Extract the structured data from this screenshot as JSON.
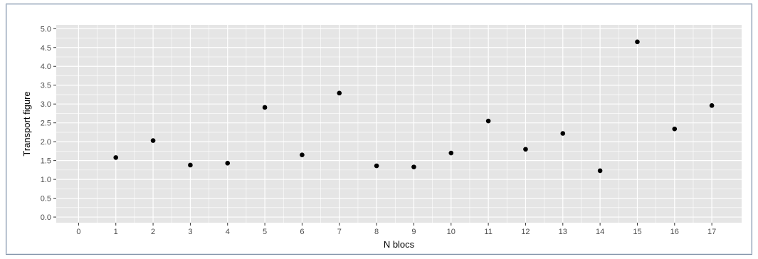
{
  "chart_data": {
    "type": "scatter",
    "xlabel": "N blocs",
    "ylabel": "Transport figure",
    "xlim": [
      -0.6,
      17.8
    ],
    "ylim": [
      -0.15,
      5.1
    ],
    "grid": true,
    "x_ticks": [
      0,
      1,
      2,
      3,
      4,
      5,
      6,
      7,
      8,
      9,
      10,
      11,
      12,
      13,
      14,
      15,
      16,
      17
    ],
    "y_ticks": [
      "0.0",
      "0.5",
      "1.0",
      "1.5",
      "2.0",
      "2.5",
      "3.0",
      "3.5",
      "4.0",
      "4.5",
      "5.0"
    ],
    "x": [
      1,
      2,
      3,
      4,
      5,
      6,
      7,
      8,
      9,
      10,
      11,
      12,
      13,
      14,
      15,
      16,
      17
    ],
    "y": [
      1.58,
      2.03,
      1.38,
      1.43,
      2.91,
      1.65,
      3.29,
      1.36,
      1.33,
      1.7,
      2.55,
      1.8,
      2.22,
      1.23,
      4.65,
      2.34,
      2.96
    ],
    "point_color": "#000000",
    "panel_color": "#e5e5e5",
    "grid_color": "#ffffff"
  }
}
